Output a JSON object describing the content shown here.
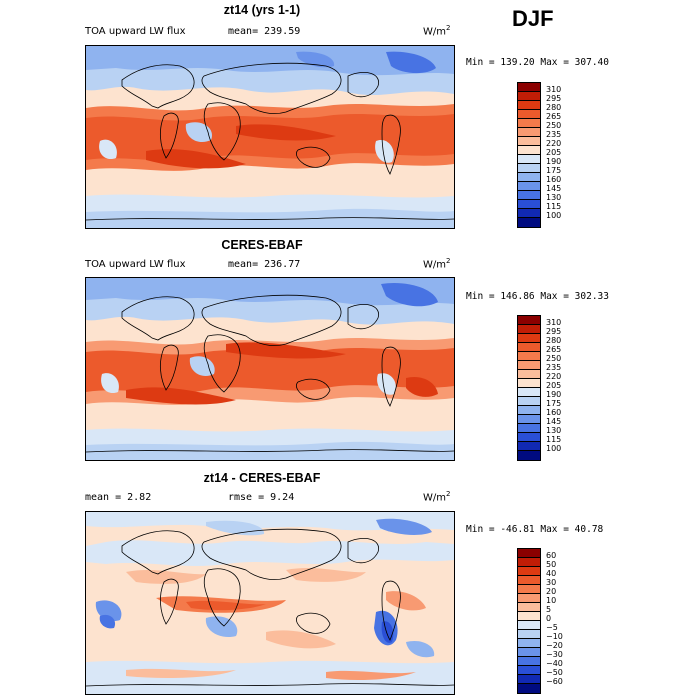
{
  "season": "DJF",
  "panels": [
    {
      "title": "zt14 (yrs 1-1)",
      "left_label": "TOA upward LW flux",
      "mean_label": "mean= 239.59",
      "units": "W/m",
      "units_exp": "2",
      "minmax": "Min = 139.20 Max = 307.40"
    },
    {
      "title": "CERES-EBAF",
      "left_label": "TOA upward LW flux",
      "mean_label": "mean= 236.77",
      "units": "W/m",
      "units_exp": "2",
      "minmax": "Min = 146.86 Max = 302.33"
    },
    {
      "title": "zt14 - CERES-EBAF",
      "mean_label": "mean =   2.82",
      "rmse_label": "rmse =   9.24",
      "units": "W/m",
      "units_exp": "2",
      "minmax": "Min = -46.81 Max =  40.78"
    }
  ],
  "colorbar_abs": {
    "levels": [
      "310",
      "295",
      "280",
      "265",
      "250",
      "235",
      "220",
      "205",
      "190",
      "175",
      "160",
      "145",
      "130",
      "115",
      "100"
    ],
    "colors": [
      "#8b0000",
      "#c01d06",
      "#dd3a12",
      "#ec5a2c",
      "#f47a4b",
      "#f89a72",
      "#fbbd9c",
      "#fde3cf",
      "#d9e7f7",
      "#b9d2f3",
      "#8fb3ef",
      "#6a93ea",
      "#4873e3",
      "#2a4fd6",
      "#1129b3",
      "#000b80"
    ]
  },
  "colorbar_diff": {
    "levels": [
      "60",
      "50",
      "40",
      "30",
      "20",
      "10",
      "5",
      "0",
      "−5",
      "−10",
      "−20",
      "−30",
      "−40",
      "−50",
      "−60"
    ],
    "colors": [
      "#8b0000",
      "#c01d06",
      "#dd3a12",
      "#ec5a2c",
      "#f47a4b",
      "#f89a72",
      "#fbbd9c",
      "#fde3cf",
      "#d9e7f7",
      "#b9d2f3",
      "#8fb3ef",
      "#6a93ea",
      "#4873e3",
      "#2a4fd6",
      "#1129b3",
      "#000b80"
    ]
  }
}
